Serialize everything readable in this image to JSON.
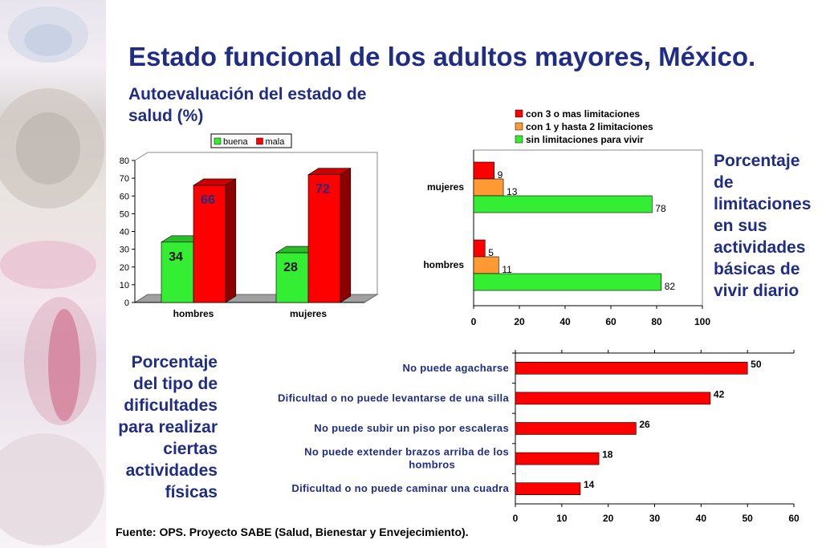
{
  "title": "Estado funcional de los adultos mayores, México.",
  "chart1_title": "Autoevaluación del estado de salud (%)",
  "chart2_caption": "Porcentaje de limitaciones en sus actividades básicas de vivir diario",
  "chart3_caption": "Porcentaje del tipo de dificultades para realizar ciertas actividades físicas",
  "source": "Fuente: OPS. Proyecto SABE (Salud, Bienestar y Envejecimiento).",
  "colors": {
    "green": "#33ee33",
    "red": "#ff0000",
    "orange": "#ff9933",
    "title_blue": "#1f2d86"
  },
  "chart_data": [
    {
      "type": "bar",
      "title": "Autoevaluación del estado de salud (%)",
      "categories": [
        "hombres",
        "mujeres"
      ],
      "series": [
        {
          "name": "buena",
          "values": [
            34,
            28
          ],
          "color": "#33ee33"
        },
        {
          "name": "mala",
          "values": [
            66,
            72
          ],
          "color": "#ff0000"
        }
      ],
      "ylim": [
        0,
        80
      ],
      "yticks": [
        0,
        10,
        20,
        30,
        40,
        50,
        60,
        70,
        80
      ],
      "legend": "top",
      "grid": false,
      "style": "3d"
    },
    {
      "type": "bar",
      "orientation": "horizontal",
      "categories": [
        "mujeres",
        "hombres"
      ],
      "series": [
        {
          "name": "con 3 o mas limitaciones",
          "values": [
            9,
            5
          ],
          "color": "#ff0000"
        },
        {
          "name": "con 1 y hasta 2 limitaciones",
          "values": [
            13,
            11
          ],
          "color": "#ff9933"
        },
        {
          "name": "sin limitaciones para vivir",
          "values": [
            78,
            82
          ],
          "color": "#33ee33"
        }
      ],
      "xlim": [
        0,
        100
      ],
      "xticks": [
        0,
        20,
        40,
        60,
        80,
        100
      ],
      "legend": "top",
      "grid": false
    },
    {
      "type": "bar",
      "orientation": "horizontal",
      "categories": [
        "No puede agacharse",
        "Dificultad o no puede levantarse de una silla",
        "No puede subir un piso por escaleras",
        "No puede extender brazos arriba de los hombros",
        "Dificultad o no puede caminar una cuadra"
      ],
      "values": [
        50,
        42,
        26,
        18,
        14
      ],
      "color": "#ff0000",
      "xlim": [
        0,
        60
      ],
      "xticks": [
        0,
        10,
        20,
        30,
        40,
        50,
        60
      ],
      "grid": false
    }
  ]
}
